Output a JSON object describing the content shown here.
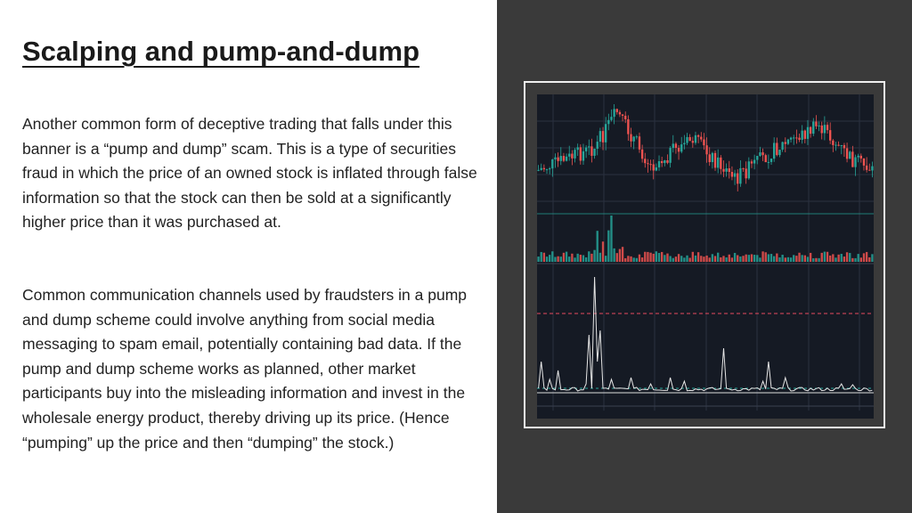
{
  "slide": {
    "title": "Scalping and pump-and-dump",
    "paragraphs": [
      "Another common form of deceptive trading that falls under this banner is a “pump and dump” scam. This is a type of securities fraud in which the price of an owned stock is inflated through false information so that the stock can then be sold at a significantly higher price than it was purchased at.",
      "Common communication channels used by fraudsters in a pump and dump scheme could involve anything from social media messaging to spam email, potentially containing bad data. If the pump and dump scheme works as planned, other market participants buy into the misleading information and invest in the wholesale energy product, thereby driving up its price. (Hence “pumping” up the price and then “dumping” the stock.)"
    ]
  },
  "image": {
    "description_icon": "stock-chart-image",
    "colors": {
      "background": "#151a24",
      "up": "#26a69a",
      "down": "#ef5350",
      "line": "#e6e6e6",
      "threshold": "#e84a5f"
    }
  }
}
